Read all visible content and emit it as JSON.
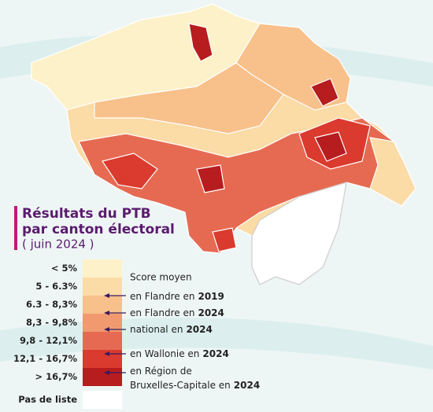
{
  "title": [
    "Résultats du PTB",
    "par canton électoral",
    "( juin 2024 )"
  ],
  "legend": [
    {
      "label": "< 5%",
      "color": "#fdf1c9"
    },
    {
      "label": "5 - 6.3%",
      "color": "#fbdba6"
    },
    {
      "label": "6.3 - 8,3%",
      "color": "#f8c08a"
    },
    {
      "label": "8,3 - 9,8%",
      "color": "#f19a70"
    },
    {
      "label": "9,8 - 12,1%",
      "color": "#e66a52"
    },
    {
      "label": "12,1 - 16,7%",
      "color": "#db3a2e"
    },
    {
      "label": "> 16,7%",
      "color": "#b71c1f"
    },
    {
      "label": "Pas de liste",
      "color": "#ffffff"
    }
  ],
  "score_moyen": {
    "title": "Score moyen",
    "items": [
      {
        "lines": [
          {
            "text": "en Flandre en",
            "bold": "2019"
          }
        ]
      },
      {
        "lines": [
          {
            "text": "en Flandre en",
            "bold": "2024"
          }
        ]
      },
      {
        "lines": [
          {
            "text": "national en",
            "bold": "2024"
          }
        ]
      },
      {
        "lines": [
          {
            "text": "en Wallonie en",
            "bold": "2024"
          }
        ]
      },
      {
        "lines": [
          {
            "text": "en Région de"
          },
          {
            "text": "Bruxelles-Capitale en",
            "bold": "2024"
          }
        ]
      }
    ]
  }
}
